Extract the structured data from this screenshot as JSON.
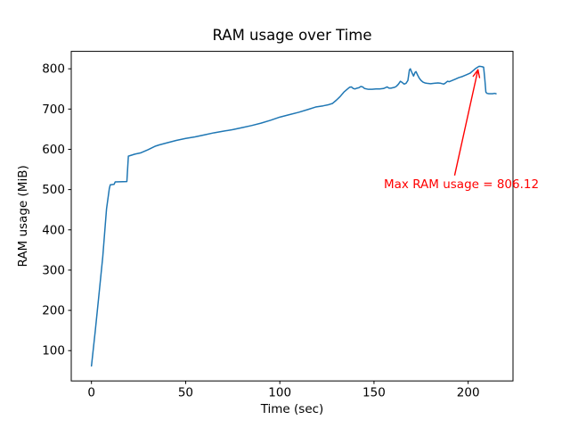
{
  "figure": {
    "background": "#ffffff",
    "spine_color": "#000000",
    "text_color": "#000000"
  },
  "chart_data": {
    "type": "line",
    "title": "RAM usage over Time",
    "xlabel": "Time (sec)",
    "ylabel": "RAM usage (MiB)",
    "grid": false,
    "legend": null,
    "xlim": [
      -10.73,
      223.8
    ],
    "ylim": [
      24.8,
      843.3
    ],
    "x_ticks": [
      0,
      50,
      100,
      150,
      200
    ],
    "y_ticks": [
      100,
      200,
      300,
      400,
      500,
      600,
      700,
      800
    ],
    "series": [
      {
        "name": "RAM usage",
        "color": "#1f77b4",
        "line_width": 1.5,
        "points": [
          [
            0,
            62
          ],
          [
            2,
            148
          ],
          [
            4,
            240
          ],
          [
            6,
            333
          ],
          [
            8,
            452
          ],
          [
            9.5,
            503
          ],
          [
            10,
            512
          ],
          [
            12,
            513
          ],
          [
            12.6,
            519
          ],
          [
            18.8,
            520
          ],
          [
            19.6,
            583
          ],
          [
            23,
            588
          ],
          [
            26,
            591
          ],
          [
            30,
            599
          ],
          [
            34,
            608
          ],
          [
            36,
            611
          ],
          [
            40,
            616
          ],
          [
            45,
            622
          ],
          [
            50,
            627
          ],
          [
            55,
            631
          ],
          [
            60,
            636
          ],
          [
            65,
            641
          ],
          [
            70,
            645
          ],
          [
            75,
            649
          ],
          [
            80,
            654
          ],
          [
            85,
            659
          ],
          [
            90,
            665
          ],
          [
            95,
            672
          ],
          [
            100,
            680
          ],
          [
            105,
            686
          ],
          [
            110,
            692
          ],
          [
            115,
            699
          ],
          [
            119,
            705
          ],
          [
            123,
            708
          ],
          [
            126,
            711
          ],
          [
            128,
            714
          ],
          [
            130,
            722
          ],
          [
            132,
            731
          ],
          [
            134,
            742
          ],
          [
            136,
            750
          ],
          [
            137,
            754
          ],
          [
            138,
            755
          ],
          [
            139,
            751
          ],
          [
            140,
            750
          ],
          [
            141,
            752
          ],
          [
            142,
            753
          ],
          [
            143,
            756
          ],
          [
            144,
            755
          ],
          [
            145,
            751
          ],
          [
            147,
            749
          ],
          [
            149,
            749
          ],
          [
            151,
            750
          ],
          [
            153,
            750
          ],
          [
            155,
            751
          ],
          [
            156,
            753
          ],
          [
            157,
            755
          ],
          [
            158,
            752
          ],
          [
            159,
            752
          ],
          [
            160,
            753
          ],
          [
            161,
            754
          ],
          [
            162,
            757
          ],
          [
            163,
            762
          ],
          [
            164,
            769
          ],
          [
            165,
            766
          ],
          [
            166,
            762
          ],
          [
            167,
            764
          ],
          [
            168,
            771
          ],
          [
            168.8,
            797
          ],
          [
            169.3,
            800
          ],
          [
            170,
            792
          ],
          [
            171,
            782
          ],
          [
            171.8,
            791
          ],
          [
            172.3,
            793
          ],
          [
            173,
            786
          ],
          [
            174,
            777
          ],
          [
            175,
            771
          ],
          [
            176,
            767
          ],
          [
            177,
            765
          ],
          [
            178,
            764
          ],
          [
            180,
            763
          ],
          [
            182,
            764
          ],
          [
            184,
            765
          ],
          [
            185.5,
            764
          ],
          [
            187,
            762
          ],
          [
            188,
            765
          ],
          [
            189,
            769
          ],
          [
            190,
            768
          ],
          [
            191,
            770
          ],
          [
            192,
            772
          ],
          [
            193,
            774
          ],
          [
            195,
            778
          ],
          [
            197,
            781
          ],
          [
            199,
            785
          ],
          [
            201,
            789
          ],
          [
            202,
            793
          ],
          [
            203,
            797
          ],
          [
            204,
            801
          ],
          [
            205,
            804
          ],
          [
            205.8,
            806.12
          ],
          [
            206.5,
            806
          ],
          [
            207.5,
            805
          ],
          [
            208.2,
            804
          ],
          [
            208.8,
            776
          ],
          [
            209.4,
            742
          ],
          [
            210,
            739
          ],
          [
            211,
            738
          ],
          [
            212,
            738
          ],
          [
            213,
            738
          ],
          [
            214,
            739
          ],
          [
            214.8,
            738
          ]
        ]
      }
    ],
    "annotation": {
      "text": "Max RAM usage = 806.12",
      "color": "#ff0000",
      "max_value": 806.12,
      "arrow_tip_xy": [
        205.2,
        797.5
      ],
      "arrow_tail_xy": [
        192.8,
        535
      ]
    }
  }
}
